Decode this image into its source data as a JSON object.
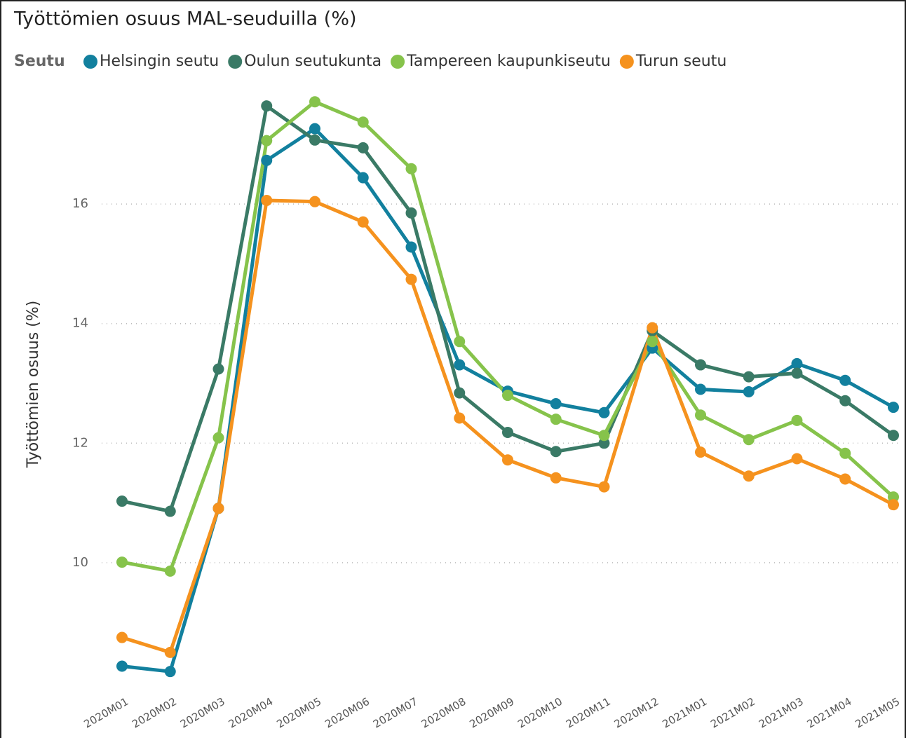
{
  "chart_data": {
    "type": "line",
    "title": "Työttömien osuus MAL-seuduilla (%)",
    "legend_title": "Seutu",
    "y_label": "Työttömien osuus (%)",
    "categories": [
      "2020M01",
      "2020M02",
      "2020M03",
      "2020M04",
      "2020M05",
      "2020M06",
      "2020M07",
      "2020M08",
      "2020M09",
      "2020M10",
      "2020M11",
      "2020M12",
      "2021M01",
      "2021M02",
      "2021M03",
      "2021M04",
      "2021M05"
    ],
    "series": [
      {
        "name": "Helsingin seutu",
        "color": "#12809e",
        "values": [
          8.27,
          8.18,
          10.91,
          16.73,
          17.26,
          16.44,
          15.28,
          13.31,
          12.87,
          12.66,
          12.51,
          13.59,
          12.9,
          12.86,
          13.33,
          13.05,
          12.6
        ]
      },
      {
        "name": "Oulun seutukunta",
        "color": "#3a7a66",
        "values": [
          11.03,
          10.86,
          13.24,
          17.64,
          17.07,
          16.94,
          15.85,
          12.84,
          12.18,
          11.86,
          12.0,
          13.88,
          13.31,
          13.11,
          13.17,
          12.71,
          12.13
        ]
      },
      {
        "name": "Tampereen kaupunkiseutu",
        "color": "#86c34b",
        "values": [
          10.01,
          9.86,
          12.09,
          17.06,
          17.71,
          17.37,
          16.59,
          13.7,
          12.8,
          12.4,
          12.13,
          13.7,
          12.47,
          12.06,
          12.38,
          11.83,
          11.1
        ]
      },
      {
        "name": "Turun seutu",
        "color": "#f5921e",
        "values": [
          8.75,
          8.5,
          10.91,
          16.06,
          16.04,
          15.7,
          14.74,
          12.42,
          11.72,
          11.42,
          11.27,
          13.93,
          11.85,
          11.45,
          11.74,
          11.4,
          10.97
        ]
      }
    ],
    "ylim": [
      8.1,
      17.9
    ],
    "yticks": [
      10,
      12,
      14,
      16
    ],
    "grid": true
  }
}
